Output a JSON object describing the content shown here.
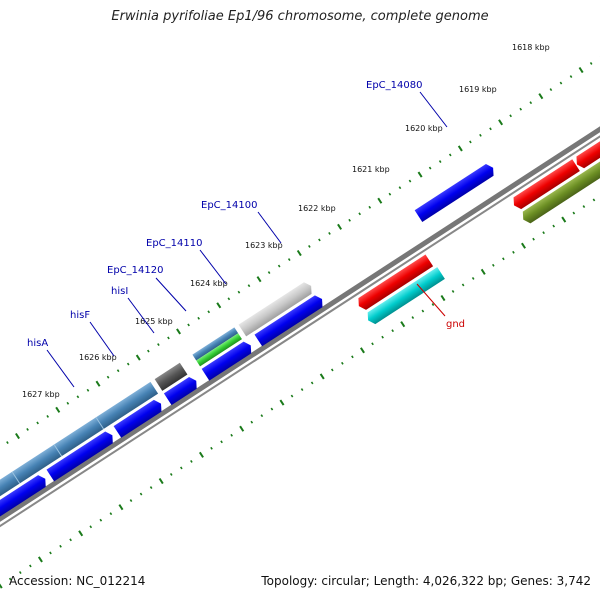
{
  "title": "Erwinia pyrifoliae Ep1/96 chromosome, complete genome",
  "footer": {
    "accession": "Accession: NC_012214",
    "summary": "Topology: circular; Length: 4,026,322 bp; Genes: 3,742"
  },
  "colors": {
    "background": "#ffffff",
    "backbone": "#777777",
    "tick": "#1a7a1a",
    "cds": "#0000ee",
    "rna_red": "#ee0000",
    "cyan": "#00cccc",
    "olive": "#6b8e23",
    "steel": "#4682b4",
    "dark_gray": "#555555",
    "light_gray": "#c8c8c8",
    "green": "#33cc33",
    "label_blue": "#0000aa",
    "label_red": "#cc0000"
  },
  "position_labels": [
    "1618 kbp",
    "1619 kbp",
    "1620 kbp",
    "1621 kbp",
    "1622 kbp",
    "1623 kbp",
    "1624 kbp",
    "1625 kbp",
    "1626 kbp",
    "1627 kbp"
  ],
  "gene_labels": [
    {
      "text": "EpC_14080",
      "color": "label_blue"
    },
    {
      "text": "EpC_14100",
      "color": "label_blue"
    },
    {
      "text": "EpC_14110",
      "color": "label_blue"
    },
    {
      "text": "EpC_14120",
      "color": "label_blue"
    },
    {
      "text": "hisI",
      "color": "label_blue"
    },
    {
      "text": "hisF",
      "color": "label_blue"
    },
    {
      "text": "hisA",
      "color": "label_blue"
    },
    {
      "text": "gnd",
      "color": "label_red"
    }
  ]
}
